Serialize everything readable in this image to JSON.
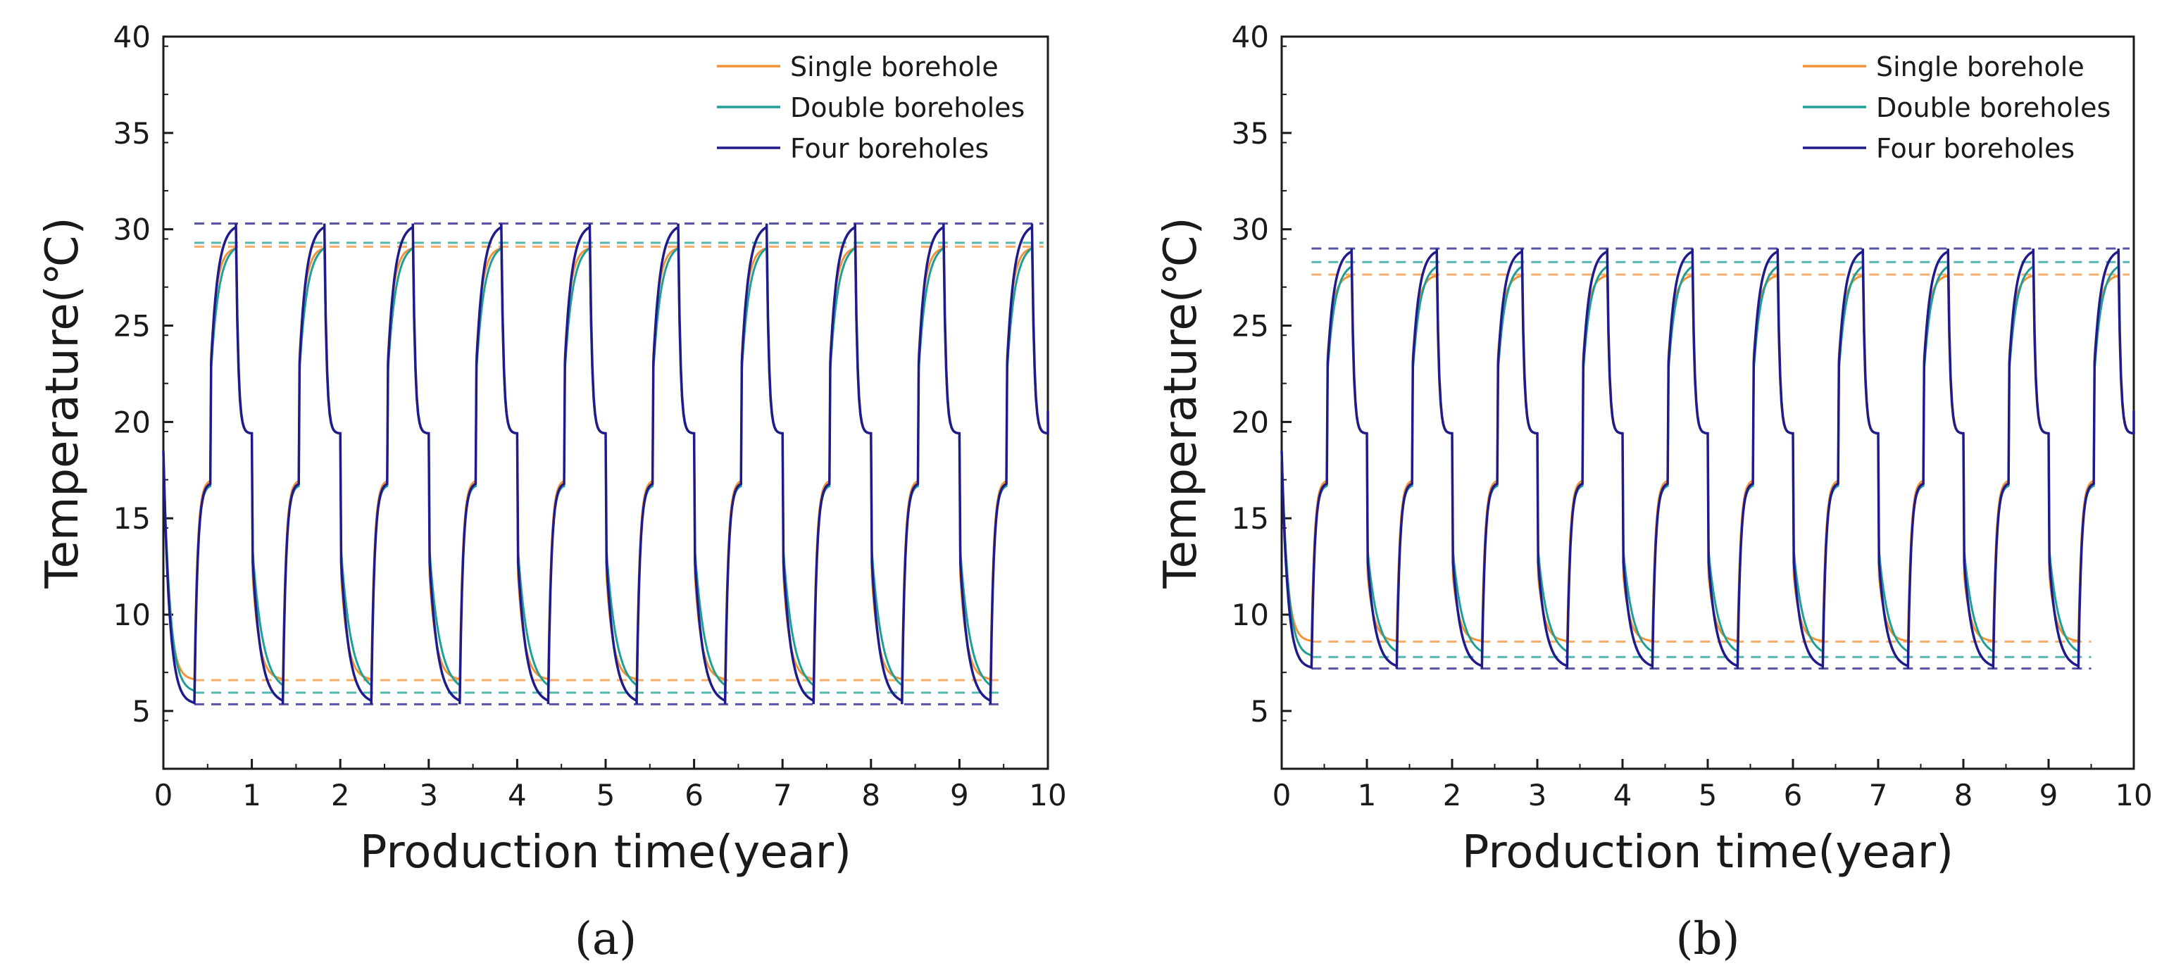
{
  "chart_data": [
    {
      "type": "line",
      "panel_label": "(a)",
      "panel_letter": "a",
      "xlabel": "Production time(year)",
      "ylabel": "Temperature(℃)",
      "xlim": [
        0,
        10
      ],
      "ylim": [
        2,
        40
      ],
      "xticks": [
        0,
        1,
        2,
        3,
        4,
        5,
        6,
        7,
        8,
        9,
        10
      ],
      "yticks": [
        5,
        10,
        15,
        20,
        25,
        30,
        35,
        40
      ],
      "legend_position": "top-right",
      "start_temperature": 18.5,
      "series": [
        {
          "name": "Single borehole",
          "color": "#F39237",
          "dashed_max": 29.1,
          "dashed_min": 6.6
        },
        {
          "name": "Double boreholes",
          "color": "#1E9E96",
          "dashed_max": 29.3,
          "dashed_min": 5.95
        },
        {
          "name": "Four boreholes",
          "color": "#1F1B8C",
          "dashed_max": 30.3,
          "dashed_min": 5.35
        }
      ]
    },
    {
      "type": "line",
      "panel_label": "(b)",
      "panel_letter": "b",
      "xlabel": "Production time(year)",
      "ylabel": "Temperature(℃)",
      "xlim": [
        0,
        10
      ],
      "ylim": [
        2,
        40
      ],
      "xticks": [
        0,
        1,
        2,
        3,
        4,
        5,
        6,
        7,
        8,
        9,
        10
      ],
      "yticks": [
        5,
        10,
        15,
        20,
        25,
        30,
        35,
        40
      ],
      "legend_position": "top-right",
      "start_temperature": 18.5,
      "series": [
        {
          "name": "Single borehole",
          "color": "#F39237",
          "dashed_max": 27.65,
          "dashed_min": 8.6
        },
        {
          "name": "Double boreholes",
          "color": "#1E9E96",
          "dashed_max": 28.3,
          "dashed_min": 7.8
        },
        {
          "name": "Four boreholes",
          "color": "#1F1B8C",
          "dashed_max": 29.0,
          "dashed_min": 7.2
        }
      ]
    }
  ]
}
